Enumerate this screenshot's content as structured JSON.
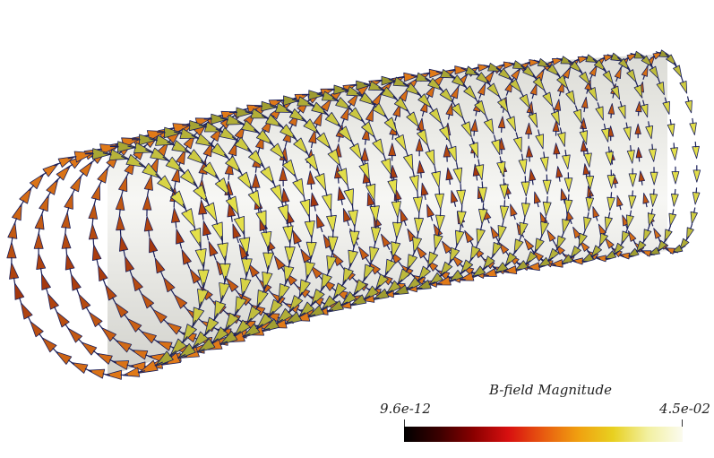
{
  "colorbar": {
    "title": "B-field Magnitude",
    "min_label": "9.6e-12",
    "max_label": "4.5e-02",
    "min_value": 9.6e-12,
    "max_value": 0.045,
    "colormap": [
      "#000000",
      "#3a0000",
      "#8a0000",
      "#d81010",
      "#e85a10",
      "#f0a010",
      "#e8d020",
      "#f2f0a0",
      "#fbfbef"
    ]
  },
  "scene": {
    "subject": "solenoid magnetic field glyphs",
    "glyph_shape": "cone-arrows",
    "background_color": "#ffffff",
    "tube_color": "#c8c8c8",
    "arrow_outline_color": "#1a1f5a"
  }
}
